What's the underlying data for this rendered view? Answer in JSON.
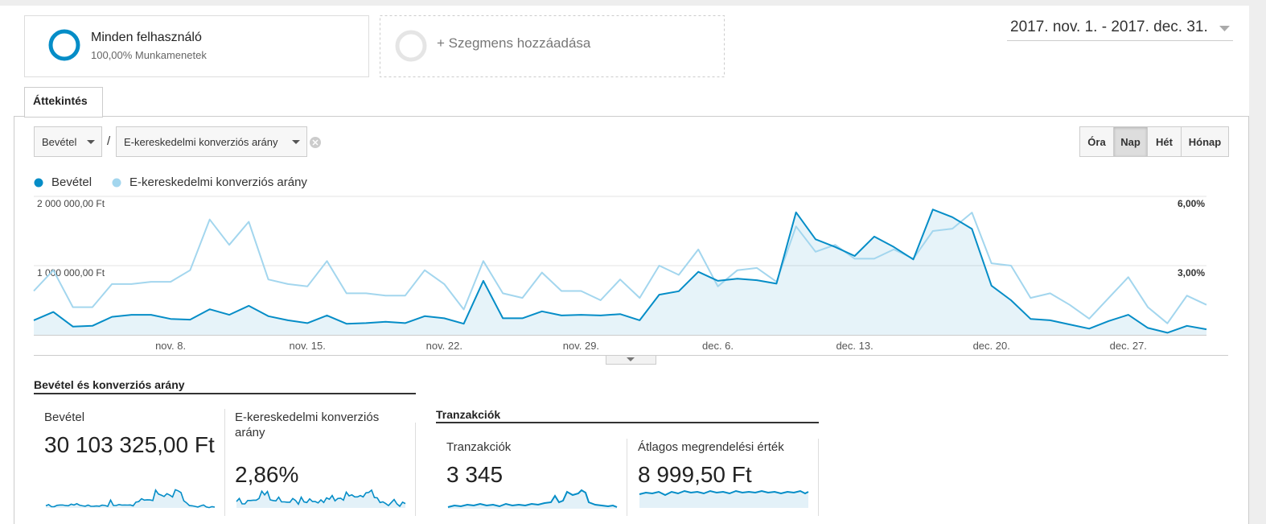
{
  "segments": [
    {
      "name": "Minden felhasználó",
      "detail": "100,00% Munkamenetek"
    },
    {
      "name": "+ Szegmens hozzáadása"
    }
  ],
  "date_range": "2017. nov. 1. - 2017. dec. 31.",
  "tab": "Áttekintés",
  "metric_selectors": [
    "Bevétel",
    "E-kereskedelmi konverziós arány"
  ],
  "separator": "/",
  "granularity": [
    "Óra",
    "Nap",
    "Hét",
    "Hónap"
  ],
  "active_granularity_index": 1,
  "chart_data": {
    "type": "line",
    "categories": [
      null,
      null,
      null,
      null,
      null,
      null,
      null,
      "nov. 8.",
      null,
      null,
      null,
      null,
      null,
      null,
      "nov. 15.",
      null,
      null,
      null,
      null,
      null,
      null,
      "nov. 22.",
      null,
      null,
      null,
      null,
      null,
      null,
      "nov. 29.",
      null,
      null,
      null,
      null,
      null,
      null,
      "dec. 6.",
      null,
      null,
      null,
      null,
      null,
      null,
      "dec. 13.",
      null,
      null,
      null,
      null,
      null,
      null,
      "dec. 20.",
      null,
      null,
      null,
      null,
      null,
      null,
      "dec. 27.",
      null,
      null,
      null,
      null
    ],
    "series": [
      {
        "name": "Bevétel",
        "color": "#058dc7",
        "fill": true,
        "values": [
          210000,
          330000,
          120000,
          130000,
          260000,
          290000,
          290000,
          230000,
          220000,
          370000,
          290000,
          420000,
          270000,
          210000,
          170000,
          280000,
          160000,
          170000,
          190000,
          170000,
          270000,
          240000,
          160000,
          780000,
          240000,
          240000,
          340000,
          280000,
          290000,
          280000,
          300000,
          210000,
          580000,
          630000,
          910000,
          780000,
          810000,
          790000,
          740000,
          1770000,
          1380000,
          1270000,
          1140000,
          1420000,
          1270000,
          1090000,
          1810000,
          1700000,
          1530000,
          710000,
          500000,
          230000,
          210000,
          150000,
          90000,
          200000,
          290000,
          100000,
          30000,
          130000,
          80000
        ]
      },
      {
        "name": "E-kereskedelmi konverziós arány",
        "color": "#a3d6ee",
        "axis": "y2",
        "values": [
          1.9,
          2.8,
          1.2,
          1.2,
          2.2,
          2.2,
          2.3,
          2.3,
          2.8,
          5.0,
          3.9,
          4.9,
          2.4,
          2.2,
          2.1,
          3.2,
          1.8,
          1.8,
          1.7,
          1.7,
          2.8,
          2.2,
          1.1,
          3.2,
          1.8,
          1.6,
          2.7,
          1.9,
          1.9,
          1.5,
          2.4,
          1.6,
          3.0,
          2.6,
          3.7,
          2.1,
          2.8,
          2.9,
          2.3,
          4.7,
          3.6,
          3.9,
          3.3,
          3.3,
          3.7,
          3.3,
          4.5,
          4.6,
          5.3,
          3.1,
          3.0,
          1.6,
          1.8,
          1.3,
          0.7,
          1.6,
          2.5,
          1.2,
          0.5,
          1.7,
          1.3
        ]
      }
    ],
    "ylim": [
      0,
      2000000
    ],
    "yticks": [
      {
        "value": 1000000,
        "label": "1 000 000,00 Ft"
      },
      {
        "value": 2000000,
        "label": "2 000 000,00 Ft"
      }
    ],
    "y2lim": [
      0,
      6
    ],
    "y2ticks": [
      {
        "value": 3,
        "label": "3,00%"
      },
      {
        "value": 6,
        "label": "6,00%"
      }
    ],
    "grid": true,
    "legend": "top-left"
  },
  "summary": [
    {
      "title": "Bevétel és konverziós arány",
      "cards": [
        {
          "label": "Bevétel",
          "value": "30 103 325,00 Ft"
        },
        {
          "label": "E-kereskedelmi konverziós arány",
          "value": "2,86%"
        }
      ]
    },
    {
      "title": "Tranzakciók",
      "cards": [
        {
          "label": "Tranzakciók",
          "value": "3 345"
        },
        {
          "label": "Átlagos megrendelési érték",
          "value": "8 999,50 Ft"
        }
      ]
    }
  ]
}
